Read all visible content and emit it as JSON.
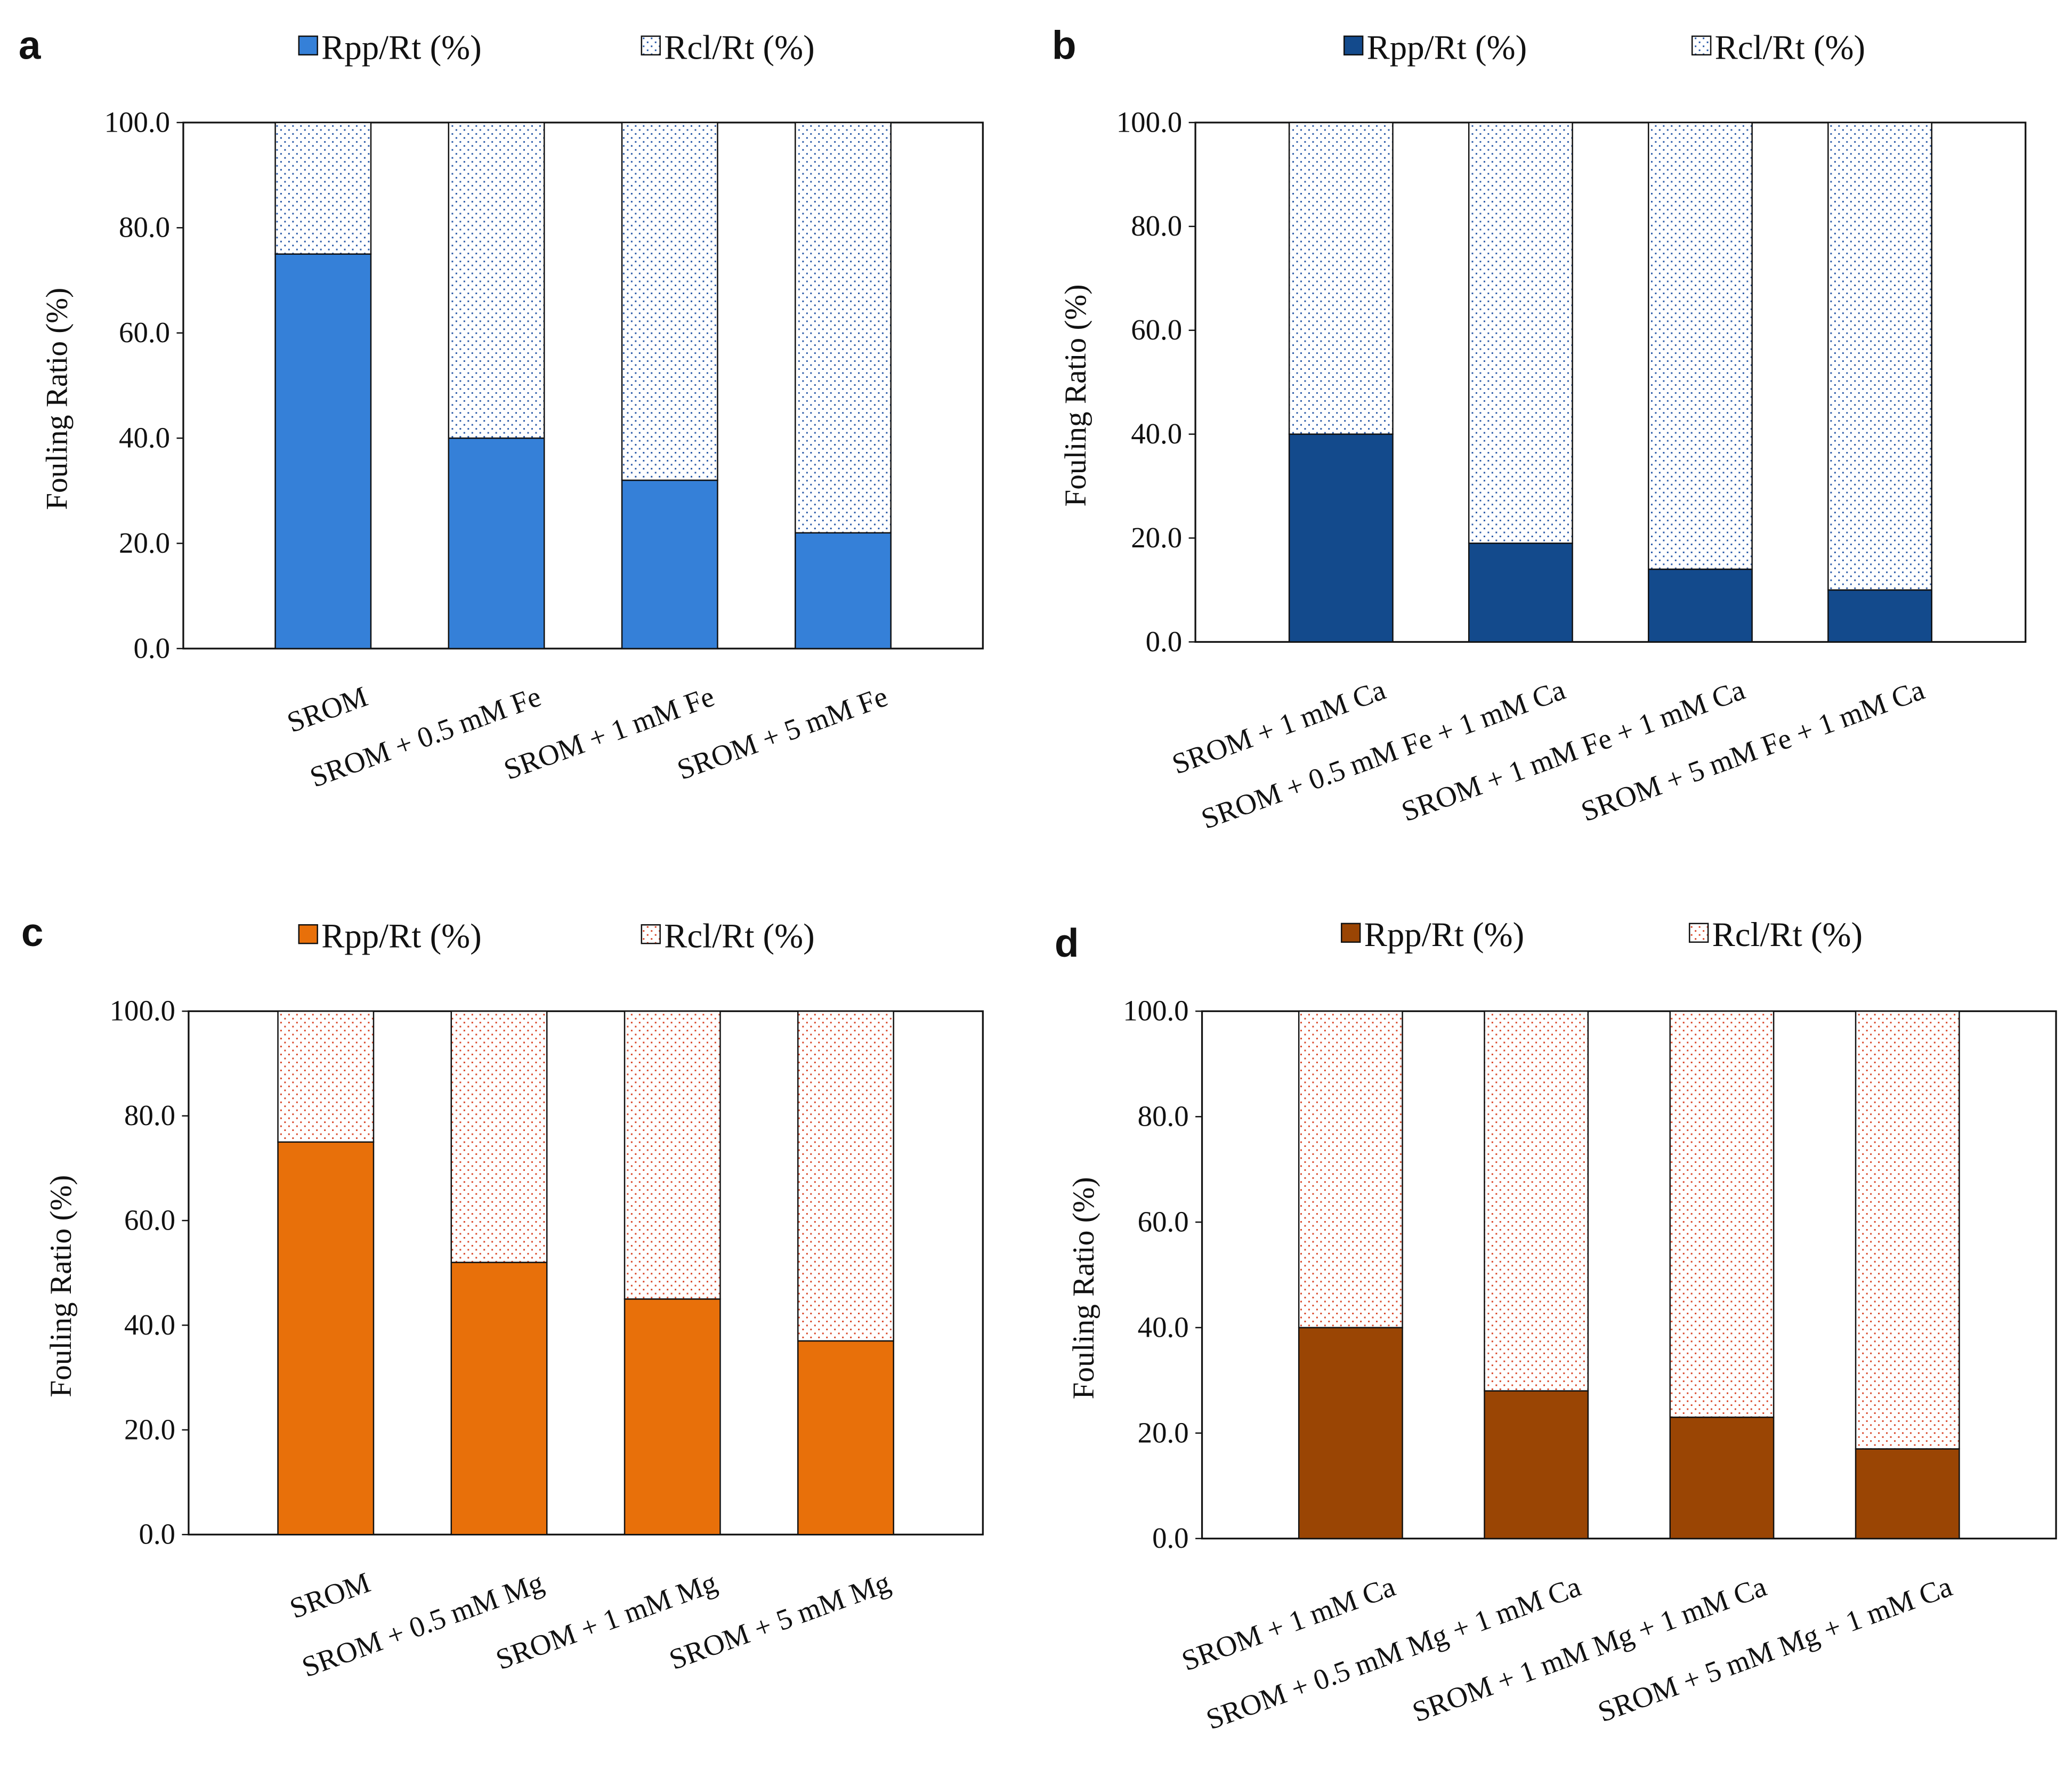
{
  "chart_data": [
    {
      "panel": "a",
      "type": "bar",
      "stacked": true,
      "categories": [
        "SROM",
        "SROM + 0.5 mM Fe",
        "SROM + 1 mM Fe",
        "SROM + 5 mM Fe"
      ],
      "series": [
        {
          "name": "Rpp/Rt (%)",
          "values": [
            75,
            40,
            32,
            22
          ],
          "color": "#3580d8",
          "fill": "solid"
        },
        {
          "name": "Rcl/Rt (%)",
          "values": [
            25,
            60,
            68,
            78
          ],
          "color": "#2a5aa8",
          "fill": "dotted"
        }
      ],
      "ylabel": "Fouling Ratio (%)",
      "ylim": [
        0,
        100
      ],
      "yticks": [
        "0.0",
        "20.0",
        "40.0",
        "60.0",
        "80.0",
        "100.0"
      ],
      "legend": "top"
    },
    {
      "panel": "b",
      "type": "bar",
      "stacked": true,
      "categories": [
        "SROM + 1 mM Ca",
        "SROM + 0.5 mM Fe + 1 mM Ca",
        "SROM + 1 mM Fe + 1 mM Ca",
        "SROM + 5 mM Fe + 1 mM Ca"
      ],
      "series": [
        {
          "name": "Rpp/Rt (%)",
          "values": [
            40,
            19,
            14,
            10
          ],
          "color": "#134a8c",
          "fill": "solid"
        },
        {
          "name": "Rcl/Rt (%)",
          "values": [
            60,
            81,
            86,
            90
          ],
          "color": "#2a5aa8",
          "fill": "dotted"
        }
      ],
      "ylabel": "Fouling Ratio (%)",
      "ylim": [
        0,
        100
      ],
      "yticks": [
        "0.0",
        "20.0",
        "40.0",
        "60.0",
        "80.0",
        "100.0"
      ],
      "legend": "top"
    },
    {
      "panel": "c",
      "type": "bar",
      "stacked": true,
      "categories": [
        "SROM",
        "SROM + 0.5 mM Mg",
        "SROM + 1 mM Mg",
        "SROM + 5 mM Mg"
      ],
      "series": [
        {
          "name": "Rpp/Rt (%)",
          "values": [
            75,
            52,
            45,
            37
          ],
          "color": "#e8700a",
          "fill": "solid"
        },
        {
          "name": "Rcl/Rt (%)",
          "values": [
            25,
            48,
            55,
            63
          ],
          "color": "#d9482a",
          "fill": "dotted"
        }
      ],
      "ylabel": "Fouling Ratio  (%)",
      "ylim": [
        0,
        100
      ],
      "yticks": [
        "0.0",
        "20.0",
        "40.0",
        "60.0",
        "80.0",
        "100.0"
      ],
      "legend": "top"
    },
    {
      "panel": "d",
      "type": "bar",
      "stacked": true,
      "categories": [
        "SROM + 1 mM Ca",
        "SROM + 0.5 mM Mg + 1 mM Ca",
        "SROM + 1 mM Mg + 1 mM Ca",
        "SROM + 5 mM Mg + 1 mM Ca"
      ],
      "series": [
        {
          "name": "Rpp/Rt (%)",
          "values": [
            40,
            28,
            23,
            17
          ],
          "color": "#9a4504",
          "fill": "solid"
        },
        {
          "name": "Rcl/Rt (%)",
          "values": [
            60,
            72,
            77,
            83
          ],
          "color": "#d9482a",
          "fill": "dotted"
        }
      ],
      "ylabel": "Fouling Ratio  (%)",
      "ylim": [
        0,
        100
      ],
      "yticks": [
        "0.0",
        "20.0",
        "40.0",
        "60.0",
        "80.0",
        "100.0"
      ],
      "legend": "top"
    }
  ]
}
